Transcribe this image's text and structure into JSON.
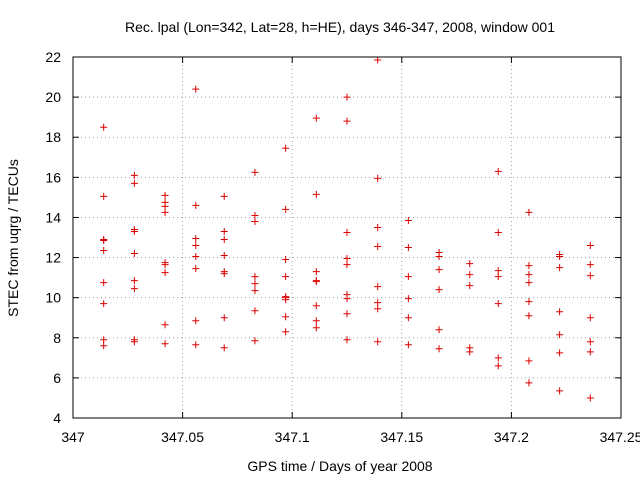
{
  "chart_data": {
    "type": "scatter",
    "title": "Rec. lpal (Lon=342, Lat=28, h=HE), days 346-347, 2008, window 001",
    "xlabel": "GPS time / Days of year 2008",
    "ylabel": "STEC from uqrg / TECUs",
    "xlim": [
      347,
      347.25
    ],
    "ylim": [
      4,
      22
    ],
    "x_ticks": [
      347,
      347.05,
      347.1,
      347.15,
      347.2,
      347.25
    ],
    "x_tick_labels": [
      "347",
      "347.05",
      "347.1",
      "347.15",
      "347.2",
      "347.25"
    ],
    "y_ticks": [
      4,
      6,
      8,
      10,
      12,
      14,
      16,
      18,
      20,
      22
    ],
    "y_tick_labels": [
      "4",
      "6",
      "8",
      "10",
      "12",
      "14",
      "16",
      "18",
      "20",
      "22"
    ],
    "grid": true,
    "marker": "+",
    "color": "#dd0000",
    "series": [
      {
        "points": [
          [
            347.014,
            18.5
          ],
          [
            347.014,
            15.05
          ],
          [
            347.014,
            12.9
          ],
          [
            347.014,
            12.85
          ],
          [
            347.014,
            12.35
          ],
          [
            347.014,
            10.75
          ],
          [
            347.014,
            9.7
          ],
          [
            347.014,
            7.9
          ],
          [
            347.014,
            7.6
          ],
          [
            347.028,
            16.1
          ],
          [
            347.028,
            15.7
          ],
          [
            347.028,
            13.4
          ],
          [
            347.028,
            13.3
          ],
          [
            347.028,
            12.2
          ],
          [
            347.028,
            10.85
          ],
          [
            347.028,
            10.45
          ],
          [
            347.028,
            7.9
          ],
          [
            347.028,
            7.8
          ],
          [
            347.042,
            15.1
          ],
          [
            347.042,
            14.75
          ],
          [
            347.042,
            14.55
          ],
          [
            347.042,
            14.25
          ],
          [
            347.042,
            11.75
          ],
          [
            347.042,
            11.65
          ],
          [
            347.042,
            11.25
          ],
          [
            347.042,
            8.65
          ],
          [
            347.042,
            7.7
          ],
          [
            347.056,
            20.4
          ],
          [
            347.056,
            14.6
          ],
          [
            347.056,
            12.95
          ],
          [
            347.056,
            12.6
          ],
          [
            347.056,
            12.05
          ],
          [
            347.056,
            11.45
          ],
          [
            347.056,
            8.85
          ],
          [
            347.056,
            7.65
          ],
          [
            347.069,
            15.05
          ],
          [
            347.069,
            13.3
          ],
          [
            347.069,
            12.9
          ],
          [
            347.069,
            12.1
          ],
          [
            347.069,
            11.3
          ],
          [
            347.069,
            11.2
          ],
          [
            347.069,
            9.0
          ],
          [
            347.069,
            7.5
          ],
          [
            347.083,
            16.25
          ],
          [
            347.083,
            14.1
          ],
          [
            347.083,
            13.8
          ],
          [
            347.083,
            11.05
          ],
          [
            347.083,
            10.7
          ],
          [
            347.083,
            10.35
          ],
          [
            347.083,
            9.35
          ],
          [
            347.083,
            7.85
          ],
          [
            347.097,
            17.45
          ],
          [
            347.097,
            14.4
          ],
          [
            347.097,
            11.9
          ],
          [
            347.097,
            11.05
          ],
          [
            347.097,
            10.05
          ],
          [
            347.097,
            10.0
          ],
          [
            347.097,
            9.9
          ],
          [
            347.097,
            9.05
          ],
          [
            347.097,
            8.3
          ],
          [
            347.111,
            18.95
          ],
          [
            347.111,
            15.15
          ],
          [
            347.111,
            11.3
          ],
          [
            347.111,
            10.85
          ],
          [
            347.111,
            10.8
          ],
          [
            347.111,
            9.6
          ],
          [
            347.111,
            8.85
          ],
          [
            347.111,
            8.5
          ],
          [
            347.125,
            20.0
          ],
          [
            347.125,
            18.8
          ],
          [
            347.125,
            13.25
          ],
          [
            347.125,
            11.95
          ],
          [
            347.125,
            11.65
          ],
          [
            347.125,
            10.15
          ],
          [
            347.125,
            9.95
          ],
          [
            347.125,
            9.2
          ],
          [
            347.125,
            7.9
          ],
          [
            347.139,
            21.85
          ],
          [
            347.139,
            15.95
          ],
          [
            347.139,
            13.5
          ],
          [
            347.139,
            12.55
          ],
          [
            347.139,
            10.55
          ],
          [
            347.139,
            9.75
          ],
          [
            347.139,
            9.45
          ],
          [
            347.139,
            7.8
          ],
          [
            347.153,
            13.85
          ],
          [
            347.153,
            12.5
          ],
          [
            347.153,
            11.05
          ],
          [
            347.153,
            9.95
          ],
          [
            347.153,
            9.0
          ],
          [
            347.153,
            7.65
          ],
          [
            347.167,
            12.25
          ],
          [
            347.167,
            12.05
          ],
          [
            347.167,
            11.4
          ],
          [
            347.167,
            10.4
          ],
          [
            347.167,
            8.4
          ],
          [
            347.167,
            7.45
          ],
          [
            347.181,
            11.7
          ],
          [
            347.181,
            11.15
          ],
          [
            347.181,
            10.6
          ],
          [
            347.181,
            7.5
          ],
          [
            347.181,
            7.3
          ],
          [
            347.194,
            16.3
          ],
          [
            347.194,
            13.25
          ],
          [
            347.194,
            11.35
          ],
          [
            347.194,
            11.05
          ],
          [
            347.194,
            9.7
          ],
          [
            347.194,
            7.0
          ],
          [
            347.194,
            6.6
          ],
          [
            347.208,
            14.25
          ],
          [
            347.208,
            11.6
          ],
          [
            347.208,
            11.15
          ],
          [
            347.208,
            10.75
          ],
          [
            347.208,
            9.8
          ],
          [
            347.208,
            9.1
          ],
          [
            347.208,
            6.85
          ],
          [
            347.208,
            5.75
          ],
          [
            347.222,
            12.15
          ],
          [
            347.222,
            12.05
          ],
          [
            347.222,
            11.5
          ],
          [
            347.222,
            9.3
          ],
          [
            347.222,
            8.15
          ],
          [
            347.222,
            7.25
          ],
          [
            347.222,
            5.35
          ],
          [
            347.236,
            12.6
          ],
          [
            347.236,
            11.65
          ],
          [
            347.236,
            11.1
          ],
          [
            347.236,
            9.0
          ],
          [
            347.236,
            7.8
          ],
          [
            347.236,
            7.3
          ],
          [
            347.236,
            5.0
          ]
        ]
      }
    ]
  }
}
